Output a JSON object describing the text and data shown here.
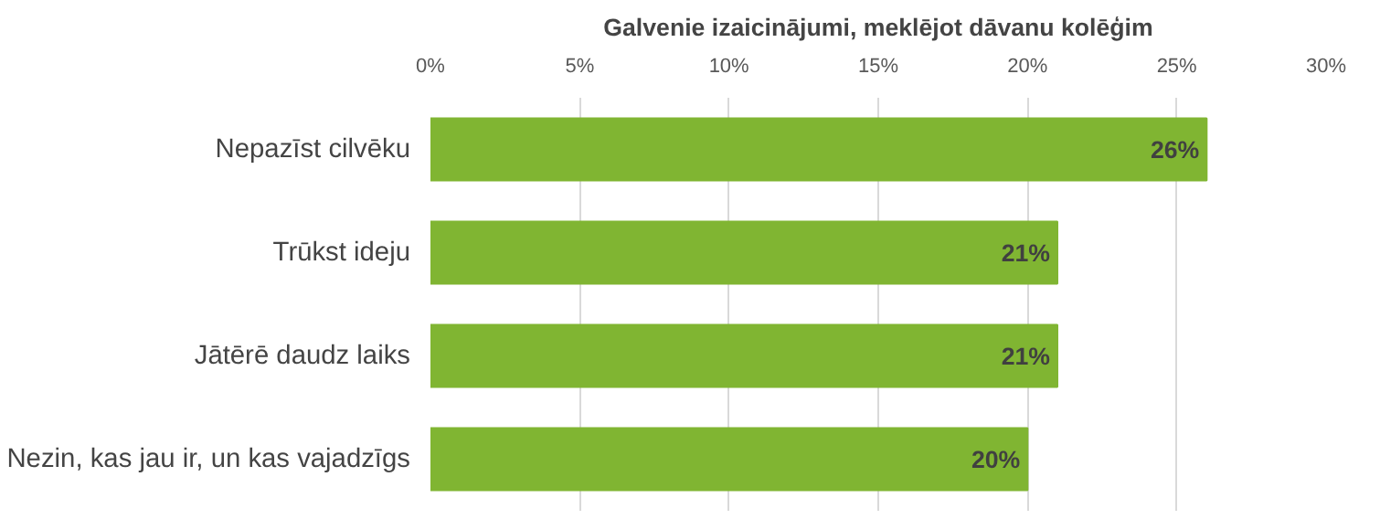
{
  "chart_data": {
    "type": "bar",
    "orientation": "horizontal",
    "title": "Galvenie izaicinājumi, meklējot dāvanu kolēģim",
    "categories": [
      "Nepazīst cilvēku",
      "Trūkst ideju",
      "Jātērē daudz laiks",
      "Nezin, kas jau ir, un kas vajadzīgs"
    ],
    "values": [
      26,
      21,
      21,
      20
    ],
    "color": "#80b532",
    "value_labels": [
      "26%",
      "21%",
      "21%",
      "20%"
    ],
    "xlim": [
      0,
      30
    ],
    "xticks": [
      {
        "value": 0,
        "label": "0%"
      },
      {
        "value": 5,
        "label": "5%"
      },
      {
        "value": 10,
        "label": "10%"
      },
      {
        "value": 15,
        "label": "15%"
      },
      {
        "value": 20,
        "label": "20%"
      },
      {
        "value": 25,
        "label": "25%"
      },
      {
        "value": 30,
        "label": "30%"
      }
    ],
    "grid": "x"
  }
}
